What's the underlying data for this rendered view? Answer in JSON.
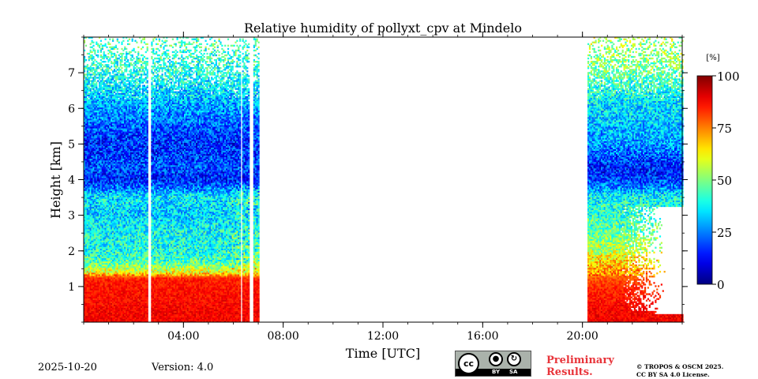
{
  "chart_data": {
    "type": "heatmap",
    "title": "Relative humidity of pollyxt_cpv at Mindelo",
    "xlabel": "Time [UTC]",
    "ylabel": "Height [km]",
    "xlim_hours": [
      0,
      24
    ],
    "ylim_km": [
      0,
      8
    ],
    "x_ticks": [
      {
        "hour": 4,
        "label": "04:00"
      },
      {
        "hour": 8,
        "label": "08:00"
      },
      {
        "hour": 12,
        "label": "12:00"
      },
      {
        "hour": 16,
        "label": "16:00"
      },
      {
        "hour": 20,
        "label": "20:00"
      }
    ],
    "y_ticks": [
      {
        "value": 1,
        "label": "1"
      },
      {
        "value": 2,
        "label": "2"
      },
      {
        "value": 3,
        "label": "3"
      },
      {
        "value": 4,
        "label": "4"
      },
      {
        "value": 5,
        "label": "5"
      },
      {
        "value": 6,
        "label": "6"
      },
      {
        "value": 7,
        "label": "7"
      }
    ],
    "colorbar": {
      "unit": "[%]",
      "range": [
        0,
        100
      ],
      "ticks": [
        {
          "value": 0,
          "label": "0"
        },
        {
          "value": 25,
          "label": "25"
        },
        {
          "value": 50,
          "label": "50"
        },
        {
          "value": 75,
          "label": "75"
        },
        {
          "value": 100,
          "label": "100"
        }
      ],
      "colormap": "jet"
    },
    "data_periods_hours": [
      [
        0,
        2.55
      ],
      [
        2.7,
        6.25
      ],
      [
        6.35,
        6.65
      ],
      [
        6.8,
        7.0
      ],
      [
        20.2,
        24.0
      ]
    ],
    "profile_rh_percent": {
      "heights_km": [
        0.0,
        0.3,
        0.6,
        0.9,
        1.2,
        1.4,
        1.7,
        2.0,
        2.5,
        3.0,
        3.5,
        3.8,
        4.0,
        4.3,
        5.0,
        5.5,
        6.0,
        6.5,
        7.0,
        8.0
      ],
      "morning": [
        88,
        88,
        87,
        86,
        85,
        60,
        44,
        40,
        38,
        33,
        36,
        22,
        15,
        20,
        16,
        22,
        28,
        35,
        40,
        45
      ],
      "evening": [
        88,
        88,
        86,
        84,
        80,
        72,
        66,
        55,
        48,
        42,
        38,
        25,
        18,
        15,
        28,
        32,
        35,
        40,
        48,
        55
      ]
    }
  },
  "footer": {
    "date": "2025-10-20",
    "version": "Version: 4.0",
    "preliminary_line1": "Preliminary",
    "preliminary_line2": "Results.",
    "copyright_line1": "© TROPOS & OSCM 2025.",
    "copyright_line2": "CC BY SA 4.0 License.",
    "license_badge": {
      "cc": "cc",
      "by": "BY",
      "sa": "SA"
    }
  },
  "colors": {
    "preliminary": "#e8343a",
    "license_badge_bg": "#aab2ab"
  }
}
